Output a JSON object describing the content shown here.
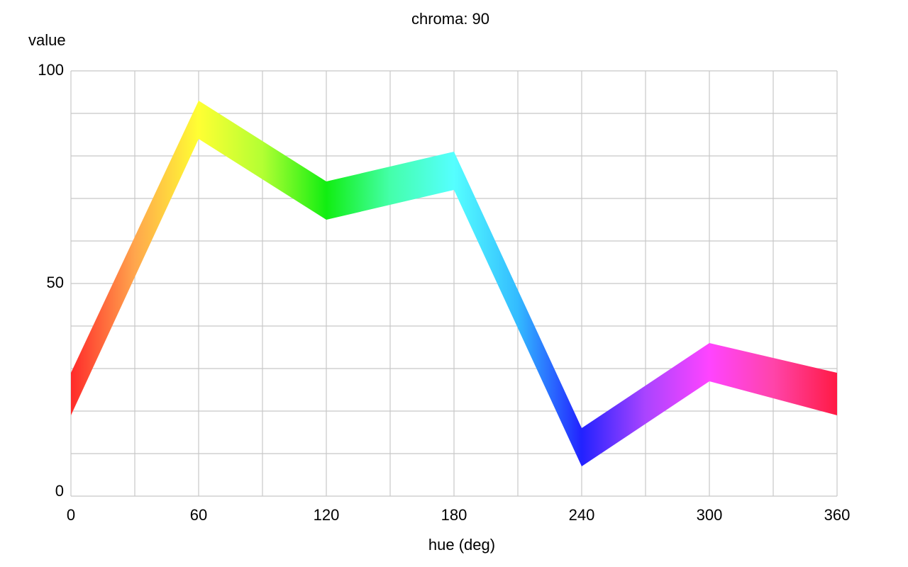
{
  "chart_data": {
    "type": "area",
    "title": "chroma: 90",
    "xlabel": "hue (deg)",
    "ylabel": "value",
    "xlim": [
      0,
      360
    ],
    "ylim": [
      0,
      100
    ],
    "x_ticks": [
      "0",
      "60",
      "120",
      "180",
      "240",
      "300",
      "360"
    ],
    "y_ticks": [
      "0",
      "50",
      "100"
    ],
    "grid": true,
    "series": [
      {
        "x": [
          0,
          60,
          120,
          180,
          240,
          300,
          360
        ],
        "y_upper": [
          29,
          93,
          74,
          81,
          16,
          36,
          29
        ]
      },
      {
        "x": [
          0,
          60,
          120,
          180,
          240,
          300,
          360
        ],
        "y_lower": [
          19,
          84,
          65,
          72,
          7,
          27,
          19
        ]
      }
    ],
    "colors": {
      "h0": "#ff2a2a",
      "h30": "#ffa64d",
      "h60": "#ffff33",
      "h90": "#b3ff33",
      "h120": "#11ee11",
      "h150": "#44ffaa",
      "h180": "#55ffff",
      "h210": "#33bbff",
      "h240": "#2222ff",
      "h270": "#aa44ff",
      "h300": "#ff44ff",
      "h330": "#ff44aa",
      "h360": "#ff1a44"
    }
  }
}
